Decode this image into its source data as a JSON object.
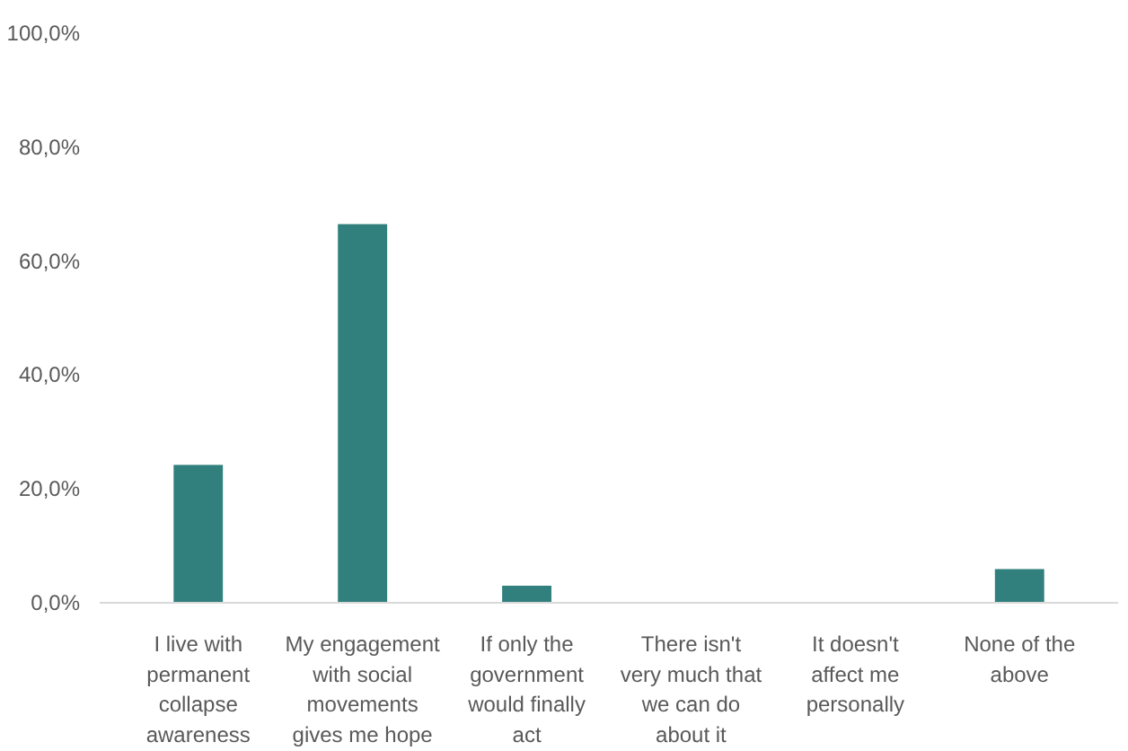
{
  "chart_data": {
    "type": "bar",
    "categories": [
      "I live with permanent collapse awareness",
      "My engagement with social movements gives me hope",
      "If only the government would finally act",
      "There isn't very much that we can do about it",
      "It doesn't affect me personally",
      "None of the above"
    ],
    "values": [
      24.2,
      66.5,
      3.0,
      0,
      0,
      5.9
    ],
    "color": "#31807d",
    "ylim": [
      0,
      100
    ],
    "yticks": [
      {
        "value": 0,
        "label": "0,0%"
      },
      {
        "value": 20,
        "label": "20,0%"
      },
      {
        "value": 40,
        "label": "40,0%"
      },
      {
        "value": 60,
        "label": "60,0%"
      },
      {
        "value": 80,
        "label": "80,0%"
      },
      {
        "value": 100,
        "label": "100,0%"
      }
    ],
    "grid": false
  }
}
